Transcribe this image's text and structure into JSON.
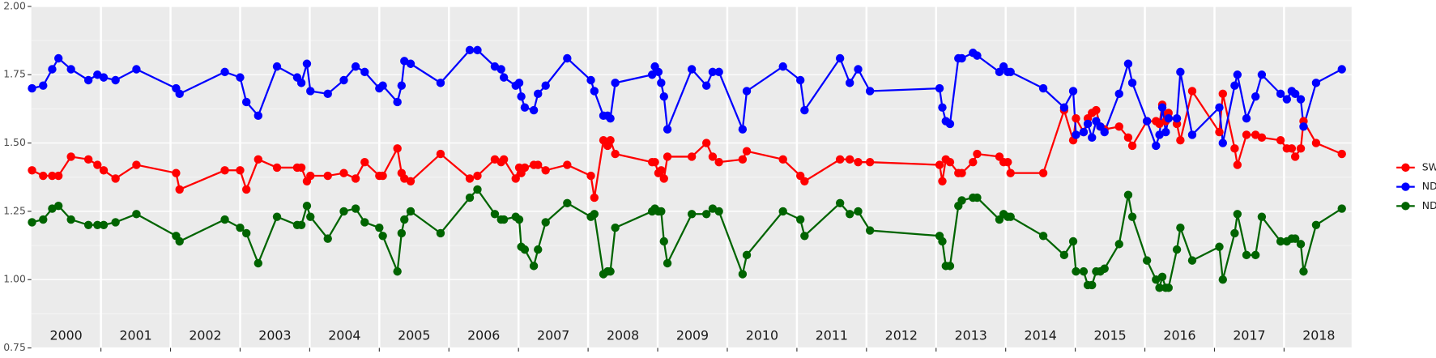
{
  "chart_data": {
    "type": "line",
    "x": [
      2000.01,
      2000.17,
      2000.3,
      2000.39,
      2000.57,
      2000.82,
      2000.95,
      2001.04,
      2001.21,
      2001.51,
      2002.08,
      2002.13,
      2002.78,
      2003.0,
      2003.09,
      2003.26,
      2003.53,
      2003.82,
      2003.88,
      2003.96,
      2004.01,
      2004.26,
      2004.49,
      2004.66,
      2004.79,
      2005.0,
      2005.05,
      2005.26,
      2005.32,
      2005.36,
      2005.45,
      2005.88,
      2006.3,
      2006.41,
      2006.66,
      2006.75,
      2006.79,
      2006.96,
      2007.01,
      2007.04,
      2007.09,
      2007.22,
      2007.28,
      2007.39,
      2007.7,
      2008.04,
      2008.09,
      2008.22,
      2008.28,
      2008.32,
      2008.39,
      2008.92,
      2008.96,
      2009.01,
      2009.05,
      2009.09,
      2009.14,
      2009.49,
      2009.7,
      2009.79,
      2009.88,
      2010.22,
      2010.28,
      2010.8,
      2011.05,
      2011.11,
      2011.62,
      2011.76,
      2011.88,
      2012.05,
      2013.05,
      2013.09,
      2013.14,
      2013.2,
      2013.32,
      2013.37,
      2013.53,
      2013.59,
      2013.91,
      2013.97,
      2014.03,
      2014.07,
      2014.54,
      2014.84,
      2014.97,
      2015.01,
      2015.12,
      2015.18,
      2015.24,
      2015.3,
      2015.36,
      2015.42,
      2015.63,
      2015.76,
      2015.82,
      2016.03,
      2016.16,
      2016.21,
      2016.25,
      2016.3,
      2016.34,
      2016.46,
      2016.51,
      2016.68,
      2017.07,
      2017.12,
      2017.29,
      2017.33,
      2017.46,
      2017.59,
      2017.68,
      2017.95,
      2018.04,
      2018.11,
      2018.16,
      2018.24,
      2018.28,
      2018.46,
      2018.83
    ],
    "series": [
      {
        "name": "SWIR",
        "color": "#ff0000",
        "values": [
          1.4,
          1.38,
          1.38,
          1.38,
          1.45,
          1.44,
          1.42,
          1.4,
          1.37,
          1.42,
          1.39,
          1.33,
          1.4,
          1.4,
          1.33,
          1.44,
          1.41,
          1.41,
          1.41,
          1.36,
          1.38,
          1.38,
          1.39,
          1.37,
          1.43,
          1.38,
          1.38,
          1.48,
          1.39,
          1.37,
          1.36,
          1.46,
          1.37,
          1.38,
          1.44,
          1.43,
          1.44,
          1.37,
          1.41,
          1.39,
          1.41,
          1.42,
          1.42,
          1.4,
          1.42,
          1.38,
          1.3,
          1.51,
          1.49,
          1.51,
          1.46,
          1.43,
          1.43,
          1.39,
          1.4,
          1.37,
          1.45,
          1.45,
          1.5,
          1.45,
          1.43,
          1.44,
          1.47,
          1.44,
          1.38,
          1.36,
          1.44,
          1.44,
          1.43,
          1.43,
          1.42,
          1.36,
          1.44,
          1.43,
          1.39,
          1.39,
          1.43,
          1.46,
          1.45,
          1.43,
          1.43,
          1.39,
          1.39,
          1.62,
          1.51,
          1.59,
          1.54,
          1.59,
          1.61,
          1.62,
          1.56,
          1.55,
          1.56,
          1.52,
          1.49,
          1.58,
          1.58,
          1.57,
          1.64,
          1.58,
          1.61,
          1.57,
          1.51,
          1.69,
          1.54,
          1.68,
          1.48,
          1.42,
          1.53,
          1.53,
          1.52,
          1.51,
          1.48,
          1.48,
          1.45,
          1.48,
          1.58,
          1.5,
          1.46
        ]
      },
      {
        "name": "NDVI",
        "color": "#0000ff",
        "values": [
          1.7,
          1.71,
          1.77,
          1.81,
          1.77,
          1.73,
          1.75,
          1.74,
          1.73,
          1.77,
          1.7,
          1.68,
          1.76,
          1.74,
          1.65,
          1.6,
          1.78,
          1.74,
          1.72,
          1.79,
          1.69,
          1.68,
          1.73,
          1.78,
          1.76,
          1.7,
          1.71,
          1.65,
          1.71,
          1.8,
          1.79,
          1.72,
          1.84,
          1.84,
          1.78,
          1.77,
          1.74,
          1.71,
          1.72,
          1.67,
          1.63,
          1.62,
          1.68,
          1.71,
          1.81,
          1.73,
          1.69,
          1.6,
          1.6,
          1.59,
          1.72,
          1.75,
          1.78,
          1.76,
          1.72,
          1.67,
          1.55,
          1.77,
          1.71,
          1.76,
          1.76,
          1.55,
          1.69,
          1.78,
          1.73,
          1.62,
          1.81,
          1.72,
          1.77,
          1.69,
          1.7,
          1.63,
          1.58,
          1.57,
          1.81,
          1.81,
          1.83,
          1.82,
          1.76,
          1.78,
          1.76,
          1.76,
          1.7,
          1.63,
          1.69,
          1.53,
          1.54,
          1.57,
          1.52,
          1.58,
          1.56,
          1.54,
          1.68,
          1.79,
          1.72,
          1.58,
          1.49,
          1.53,
          1.63,
          1.54,
          1.59,
          1.59,
          1.76,
          1.53,
          1.63,
          1.5,
          1.71,
          1.75,
          1.59,
          1.67,
          1.75,
          1.68,
          1.66,
          1.69,
          1.68,
          1.66,
          1.56,
          1.72,
          1.77
        ]
      },
      {
        "name": "NDWI",
        "color": "#006400",
        "values": [
          1.21,
          1.22,
          1.26,
          1.27,
          1.22,
          1.2,
          1.2,
          1.2,
          1.21,
          1.24,
          1.16,
          1.14,
          1.22,
          1.19,
          1.17,
          1.06,
          1.23,
          1.2,
          1.2,
          1.27,
          1.23,
          1.15,
          1.25,
          1.26,
          1.21,
          1.19,
          1.16,
          1.03,
          1.17,
          1.22,
          1.25,
          1.17,
          1.3,
          1.33,
          1.24,
          1.22,
          1.22,
          1.23,
          1.22,
          1.12,
          1.11,
          1.05,
          1.11,
          1.21,
          1.28,
          1.23,
          1.24,
          1.02,
          1.03,
          1.03,
          1.19,
          1.25,
          1.26,
          1.25,
          1.25,
          1.14,
          1.06,
          1.24,
          1.24,
          1.26,
          1.25,
          1.02,
          1.09,
          1.25,
          1.22,
          1.16,
          1.28,
          1.24,
          1.25,
          1.18,
          1.16,
          1.14,
          1.05,
          1.05,
          1.27,
          1.29,
          1.3,
          1.3,
          1.22,
          1.24,
          1.23,
          1.23,
          1.16,
          1.09,
          1.14,
          1.03,
          1.03,
          0.98,
          0.98,
          1.03,
          1.03,
          1.04,
          1.13,
          1.31,
          1.23,
          1.07,
          1.0,
          0.97,
          1.01,
          0.97,
          0.97,
          1.11,
          1.19,
          1.07,
          1.12,
          1.0,
          1.17,
          1.24,
          1.09,
          1.09,
          1.23,
          1.14,
          1.14,
          1.15,
          1.15,
          1.13,
          1.03,
          1.2,
          1.26
        ]
      }
    ],
    "xlim": [
      2000,
      2018.97
    ],
    "xticks": [
      {
        "value": 2000.5,
        "label": "2000"
      },
      {
        "value": 2001.5,
        "label": "2001"
      },
      {
        "value": 2002.5,
        "label": "2002"
      },
      {
        "value": 2003.5,
        "label": "2003"
      },
      {
        "value": 2004.5,
        "label": "2004"
      },
      {
        "value": 2005.5,
        "label": "2005"
      },
      {
        "value": 2006.5,
        "label": "2006"
      },
      {
        "value": 2007.5,
        "label": "2007"
      },
      {
        "value": 2008.5,
        "label": "2008"
      },
      {
        "value": 2009.5,
        "label": "2009"
      },
      {
        "value": 2010.5,
        "label": "2010"
      },
      {
        "value": 2011.5,
        "label": "2011"
      },
      {
        "value": 2012.5,
        "label": "2012"
      },
      {
        "value": 2013.5,
        "label": "2013"
      },
      {
        "value": 2014.5,
        "label": "2014"
      },
      {
        "value": 2015.5,
        "label": "2015"
      },
      {
        "value": 2016.5,
        "label": "2016"
      },
      {
        "value": 2017.5,
        "label": "2017"
      },
      {
        "value": 2018.5,
        "label": "2018"
      }
    ],
    "xbreaks": [
      2001,
      2002,
      2003,
      2004,
      2005,
      2006,
      2007,
      2008,
      2009,
      2010,
      2011,
      2012,
      2013,
      2014,
      2015,
      2016,
      2017,
      2018
    ],
    "ylim": [
      0.75,
      2
    ],
    "yticks": [
      0.75,
      {
        "value": 1,
        "label": "1.00"
      },
      1.25,
      {
        "value": 1.5,
        "label": "1.50"
      },
      1.75,
      {
        "value": 2,
        "label": "2.00"
      }
    ],
    "grid": true,
    "legend": "right"
  }
}
